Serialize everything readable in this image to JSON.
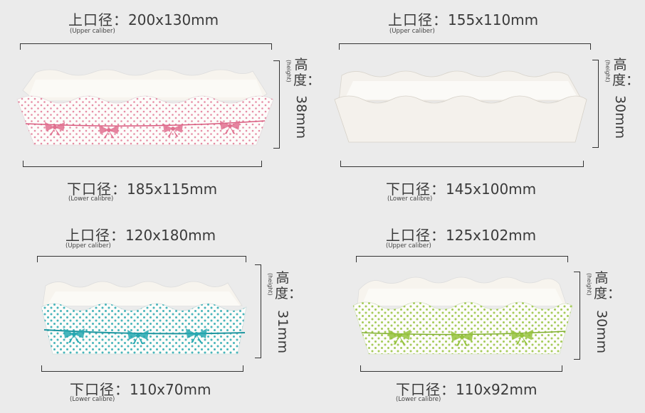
{
  "colors": {
    "pink": "#e0708f",
    "teal": "#27a8b0",
    "green": "#95c23d",
    "plain": "#f4f1ec",
    "background": "#ebebeb"
  },
  "trays": [
    {
      "upper": {
        "label": "上口径：",
        "value": "200x130mm",
        "sub": "(Upper caliber)"
      },
      "lower": {
        "label": "下口径：",
        "value": "185x115mm",
        "sub": "(Lower calibre)"
      },
      "height": {
        "label": "高度：",
        "value": "38mm",
        "sub": "(height)"
      },
      "pattern": "pink-dots-with-bows"
    },
    {
      "upper": {
        "label": "上口径：",
        "value": "155x110mm",
        "sub": "(Upper caliber)"
      },
      "lower": {
        "label": "下口径：",
        "value": "145x100mm",
        "sub": "(Lower calibre)"
      },
      "height": {
        "label": "高度：",
        "value": "30mm",
        "sub": "(height)"
      },
      "pattern": "plain-white"
    },
    {
      "upper": {
        "label": "上口径：",
        "value": "120x180mm",
        "sub": "(Upper caliber)"
      },
      "lower": {
        "label": "下口径：",
        "value": "110x70mm",
        "sub": "(Lower calibre)"
      },
      "height": {
        "label": "高度：",
        "value": "31mm",
        "sub": "(height)"
      },
      "pattern": "teal-dots-with-bows"
    },
    {
      "upper": {
        "label": "上口径：",
        "value": "125x102mm",
        "sub": "(Upper caliber)"
      },
      "lower": {
        "label": "下口径：",
        "value": "110x92mm",
        "sub": "(Lower calibre)"
      },
      "height": {
        "label": "高度：",
        "value": "30mm",
        "sub": "(height)"
      },
      "pattern": "green-dots-with-bows"
    }
  ]
}
